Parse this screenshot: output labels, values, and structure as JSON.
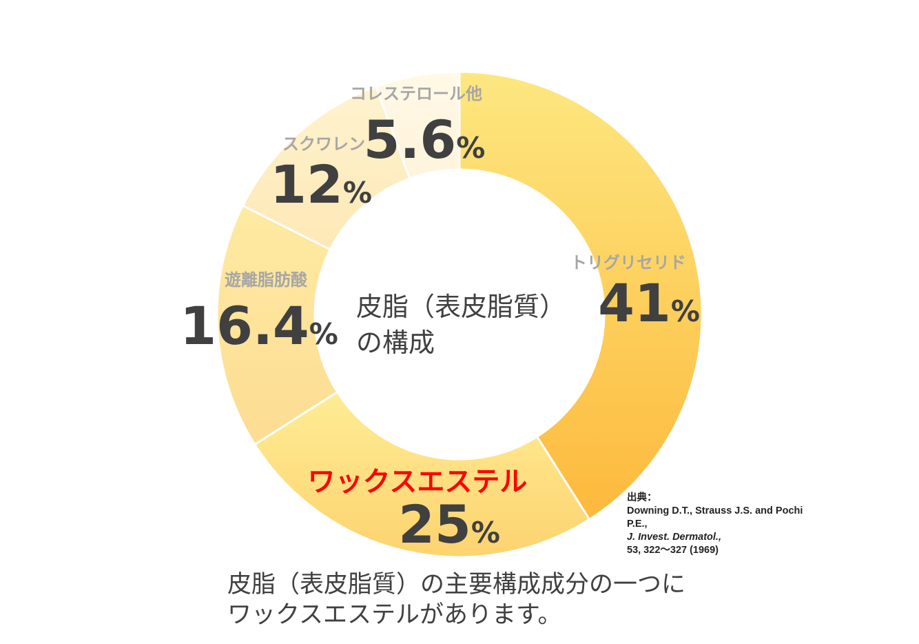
{
  "chart_data": {
    "type": "pie",
    "donut": true,
    "center_title": [
      "皮脂（表皮脂質）",
      "の構成"
    ],
    "unit": "%",
    "slices": [
      {
        "label": "トリグリセリド",
        "value": 41,
        "value_text": "41",
        "color_start": "#fde780",
        "color_end": "#fdb93c"
      },
      {
        "label": "ワックスエステル",
        "value": 25,
        "value_text": "25",
        "color_start": "#feec95",
        "color_end": "#fdd36f",
        "highlight": true,
        "label_color": "#ff0000"
      },
      {
        "label": "遊離脂肪酸",
        "value": 16.4,
        "value_text": "16.4",
        "color_start": "#feeaa2",
        "color_end": "#fddc93"
      },
      {
        "label": "スクワレン",
        "value": 12,
        "value_text": "12",
        "color_start": "#fef3cf",
        "color_end": "#fee8b6"
      },
      {
        "label": "コレステロール他",
        "value": 5.6,
        "value_text": "5.6",
        "color_start": "#fff9e6",
        "color_end": "#fff3dc"
      }
    ]
  },
  "source": {
    "heading": "出典：",
    "authors": "Downing D.T., Strauss J.S. and Pochi P.E.,",
    "journal": "J. Invest. Dermatol.,",
    "ref": "53, 322～327 (1969)"
  },
  "caption": {
    "line1": "皮脂（表皮脂質）の主要構成成分の一つに",
    "line2": "ワックスエステルがあります。"
  },
  "colors": {
    "value_text": "#404040",
    "category_text": "#a6a6a6",
    "highlight": "#ff0000"
  }
}
